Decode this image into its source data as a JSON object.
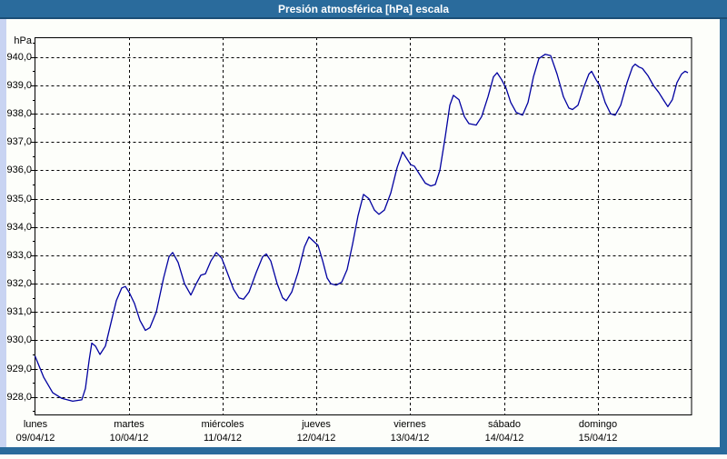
{
  "window": {
    "title": "Presión atmosférica [hPa] escala"
  },
  "colors": {
    "titlebar": "#2a6b9c",
    "titlebar_underline": "#1c4e76",
    "frame_light": "#c9d4f2",
    "frame_dark": "#2a6b9c",
    "panel_bg": "#fdfefa",
    "plot_border": "#000000",
    "grid": "#000000",
    "line": "#0000a0",
    "text": "#000000"
  },
  "chart_data": {
    "type": "line",
    "title": "Presión atmosférica [hPa] escala",
    "ylabel": "hPa",
    "xlabel": "",
    "grid": "dashed",
    "legend": "none",
    "ylim": [
      927.35,
      940.7
    ],
    "xlim_days": [
      0,
      7
    ],
    "y_major_ticks": [
      928,
      929,
      930,
      931,
      932,
      933,
      934,
      935,
      936,
      937,
      938,
      939,
      940
    ],
    "y_minor_step": 0.5,
    "y_tick_label_format": "comma-decimal-1",
    "x_days": [
      {
        "name": "lunes",
        "date": "09/04/12"
      },
      {
        "name": "martes",
        "date": "10/04/12"
      },
      {
        "name": "miércoles",
        "date": "11/04/12"
      },
      {
        "name": "jueves",
        "date": "12/04/12"
      },
      {
        "name": "viernes",
        "date": "13/04/12"
      },
      {
        "name": "sábado",
        "date": "14/04/12"
      },
      {
        "name": "domingo",
        "date": "15/04/12"
      }
    ],
    "series": [
      {
        "name": "Presión atmosférica",
        "unit": "hPa",
        "points": [
          [
            0.0,
            929.45
          ],
          [
            0.092,
            928.7
          ],
          [
            0.189,
            928.15
          ],
          [
            0.286,
            927.95
          ],
          [
            0.402,
            927.85
          ],
          [
            0.499,
            927.9
          ],
          [
            0.538,
            928.3
          ],
          [
            0.577,
            929.3
          ],
          [
            0.606,
            929.9
          ],
          [
            0.644,
            929.8
          ],
          [
            0.693,
            929.5
          ],
          [
            0.751,
            929.8
          ],
          [
            0.809,
            930.6
          ],
          [
            0.867,
            931.4
          ],
          [
            0.925,
            931.85
          ],
          [
            0.964,
            931.9
          ],
          [
            1.003,
            931.7
          ],
          [
            1.061,
            931.3
          ],
          [
            1.119,
            930.7
          ],
          [
            1.177,
            930.35
          ],
          [
            1.226,
            930.45
          ],
          [
            1.293,
            931.0
          ],
          [
            1.371,
            932.2
          ],
          [
            1.429,
            932.95
          ],
          [
            1.468,
            933.1
          ],
          [
            1.526,
            932.75
          ],
          [
            1.594,
            932.0
          ],
          [
            1.662,
            931.6
          ],
          [
            1.72,
            932.0
          ],
          [
            1.768,
            932.3
          ],
          [
            1.817,
            932.35
          ],
          [
            1.875,
            932.8
          ],
          [
            1.933,
            933.1
          ],
          [
            1.991,
            932.9
          ],
          [
            2.049,
            932.4
          ],
          [
            2.117,
            931.8
          ],
          [
            2.175,
            931.5
          ],
          [
            2.224,
            931.45
          ],
          [
            2.282,
            931.7
          ],
          [
            2.359,
            932.4
          ],
          [
            2.427,
            932.95
          ],
          [
            2.466,
            933.05
          ],
          [
            2.514,
            932.8
          ],
          [
            2.582,
            932.0
          ],
          [
            2.64,
            931.5
          ],
          [
            2.679,
            931.4
          ],
          [
            2.737,
            931.7
          ],
          [
            2.805,
            932.4
          ],
          [
            2.873,
            933.3
          ],
          [
            2.921,
            933.65
          ],
          [
            2.97,
            933.5
          ],
          [
            3.018,
            933.35
          ],
          [
            3.067,
            932.8
          ],
          [
            3.115,
            932.2
          ],
          [
            3.154,
            932.0
          ],
          [
            3.212,
            931.95
          ],
          [
            3.27,
            932.05
          ],
          [
            3.328,
            932.5
          ],
          [
            3.386,
            933.4
          ],
          [
            3.444,
            934.4
          ],
          [
            3.502,
            935.15
          ],
          [
            3.561,
            935.0
          ],
          [
            3.619,
            934.6
          ],
          [
            3.667,
            934.45
          ],
          [
            3.725,
            934.6
          ],
          [
            3.793,
            935.2
          ],
          [
            3.861,
            936.1
          ],
          [
            3.919,
            936.65
          ],
          [
            3.967,
            936.4
          ],
          [
            4.006,
            936.2
          ],
          [
            4.045,
            936.15
          ],
          [
            4.093,
            935.9
          ],
          [
            4.161,
            935.55
          ],
          [
            4.219,
            935.45
          ],
          [
            4.268,
            935.5
          ],
          [
            4.316,
            936.0
          ],
          [
            4.374,
            937.2
          ],
          [
            4.423,
            938.3
          ],
          [
            4.461,
            938.65
          ],
          [
            4.52,
            938.5
          ],
          [
            4.578,
            937.9
          ],
          [
            4.626,
            937.65
          ],
          [
            4.704,
            937.6
          ],
          [
            4.762,
            937.9
          ],
          [
            4.83,
            938.6
          ],
          [
            4.888,
            939.3
          ],
          [
            4.927,
            939.45
          ],
          [
            4.975,
            939.2
          ],
          [
            5.023,
            938.9
          ],
          [
            5.072,
            938.4
          ],
          [
            5.13,
            938.05
          ],
          [
            5.198,
            937.95
          ],
          [
            5.256,
            938.4
          ],
          [
            5.314,
            939.3
          ],
          [
            5.372,
            939.95
          ],
          [
            5.44,
            940.1
          ],
          [
            5.498,
            940.05
          ],
          [
            5.566,
            939.4
          ],
          [
            5.634,
            938.6
          ],
          [
            5.692,
            938.2
          ],
          [
            5.731,
            938.15
          ],
          [
            5.789,
            938.3
          ],
          [
            5.847,
            938.9
          ],
          [
            5.905,
            939.4
          ],
          [
            5.934,
            939.5
          ],
          [
            5.982,
            939.2
          ],
          [
            6.021,
            939.0
          ],
          [
            6.079,
            938.4
          ],
          [
            6.137,
            938.0
          ],
          [
            6.186,
            937.95
          ],
          [
            6.244,
            938.3
          ],
          [
            6.312,
            939.1
          ],
          [
            6.37,
            939.65
          ],
          [
            6.399,
            939.75
          ],
          [
            6.438,
            939.65
          ],
          [
            6.476,
            939.6
          ],
          [
            6.534,
            939.35
          ],
          [
            6.593,
            939.0
          ],
          [
            6.651,
            938.75
          ],
          [
            6.699,
            938.5
          ],
          [
            6.747,
            938.25
          ],
          [
            6.796,
            938.5
          ],
          [
            6.844,
            939.1
          ],
          [
            6.893,
            939.4
          ],
          [
            6.931,
            939.5
          ],
          [
            6.961,
            939.45
          ]
        ]
      }
    ]
  }
}
